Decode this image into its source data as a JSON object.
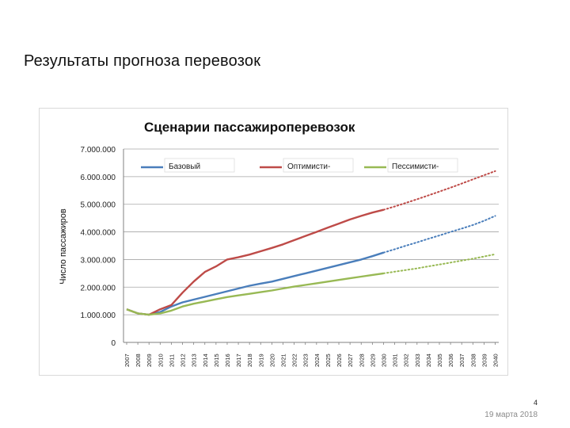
{
  "slide": {
    "title": "Результаты прогноза перевозок",
    "page_number": "4",
    "date": "19 марта 2018"
  },
  "chart_data": {
    "type": "line",
    "title": "Сценарии пассажироперевозок",
    "xlabel": "",
    "ylabel": "Число пассажиров",
    "ylim": [
      0,
      7000000
    ],
    "yticks": [
      0,
      1000000,
      2000000,
      3000000,
      4000000,
      5000000,
      6000000,
      7000000
    ],
    "ytick_labels": [
      "0",
      "1.000.000",
      "2.000.000",
      "3.000.000",
      "4.000.000",
      "5.000.000",
      "6.000.000",
      "7.000.000"
    ],
    "x": [
      2007,
      2008,
      2009,
      2010,
      2011,
      2012,
      2013,
      2014,
      2015,
      2016,
      2017,
      2018,
      2019,
      2020,
      2021,
      2022,
      2023,
      2024,
      2025,
      2026,
      2027,
      2028,
      2029,
      2030,
      2031,
      2032,
      2033,
      2034,
      2035,
      2036,
      2037,
      2038,
      2039,
      2040
    ],
    "forecast_from": 2030,
    "grid": "horizontal",
    "legend_position": "top",
    "series": [
      {
        "name": "Базовый",
        "color": "#4a7ebb",
        "values": [
          1200000,
          1050000,
          1000000,
          1100000,
          1300000,
          1450000,
          1550000,
          1650000,
          1750000,
          1850000,
          1950000,
          2050000,
          2130000,
          2200000,
          2300000,
          2400000,
          2500000,
          2600000,
          2700000,
          2800000,
          2900000,
          3000000,
          3120000,
          3250000,
          3370000,
          3500000,
          3620000,
          3750000,
          3870000,
          4000000,
          4120000,
          4250000,
          4400000,
          4580000
        ]
      },
      {
        "name": "Оптимисти-",
        "color": "#be4b48",
        "values": [
          1200000,
          1050000,
          1000000,
          1200000,
          1350000,
          1800000,
          2200000,
          2550000,
          2750000,
          3000000,
          3080000,
          3180000,
          3300000,
          3420000,
          3550000,
          3700000,
          3850000,
          4000000,
          4150000,
          4300000,
          4450000,
          4580000,
          4700000,
          4800000,
          4920000,
          5050000,
          5180000,
          5320000,
          5460000,
          5600000,
          5750000,
          5900000,
          6050000,
          6200000
        ]
      },
      {
        "name": "Пессимисти-",
        "color": "#98b954",
        "values": [
          1200000,
          1050000,
          1000000,
          1050000,
          1150000,
          1300000,
          1400000,
          1480000,
          1560000,
          1640000,
          1700000,
          1760000,
          1820000,
          1880000,
          1950000,
          2020000,
          2080000,
          2140000,
          2200000,
          2260000,
          2320000,
          2380000,
          2440000,
          2500000,
          2560000,
          2620000,
          2680000,
          2750000,
          2820000,
          2890000,
          2960000,
          3030000,
          3110000,
          3190000
        ]
      }
    ]
  }
}
